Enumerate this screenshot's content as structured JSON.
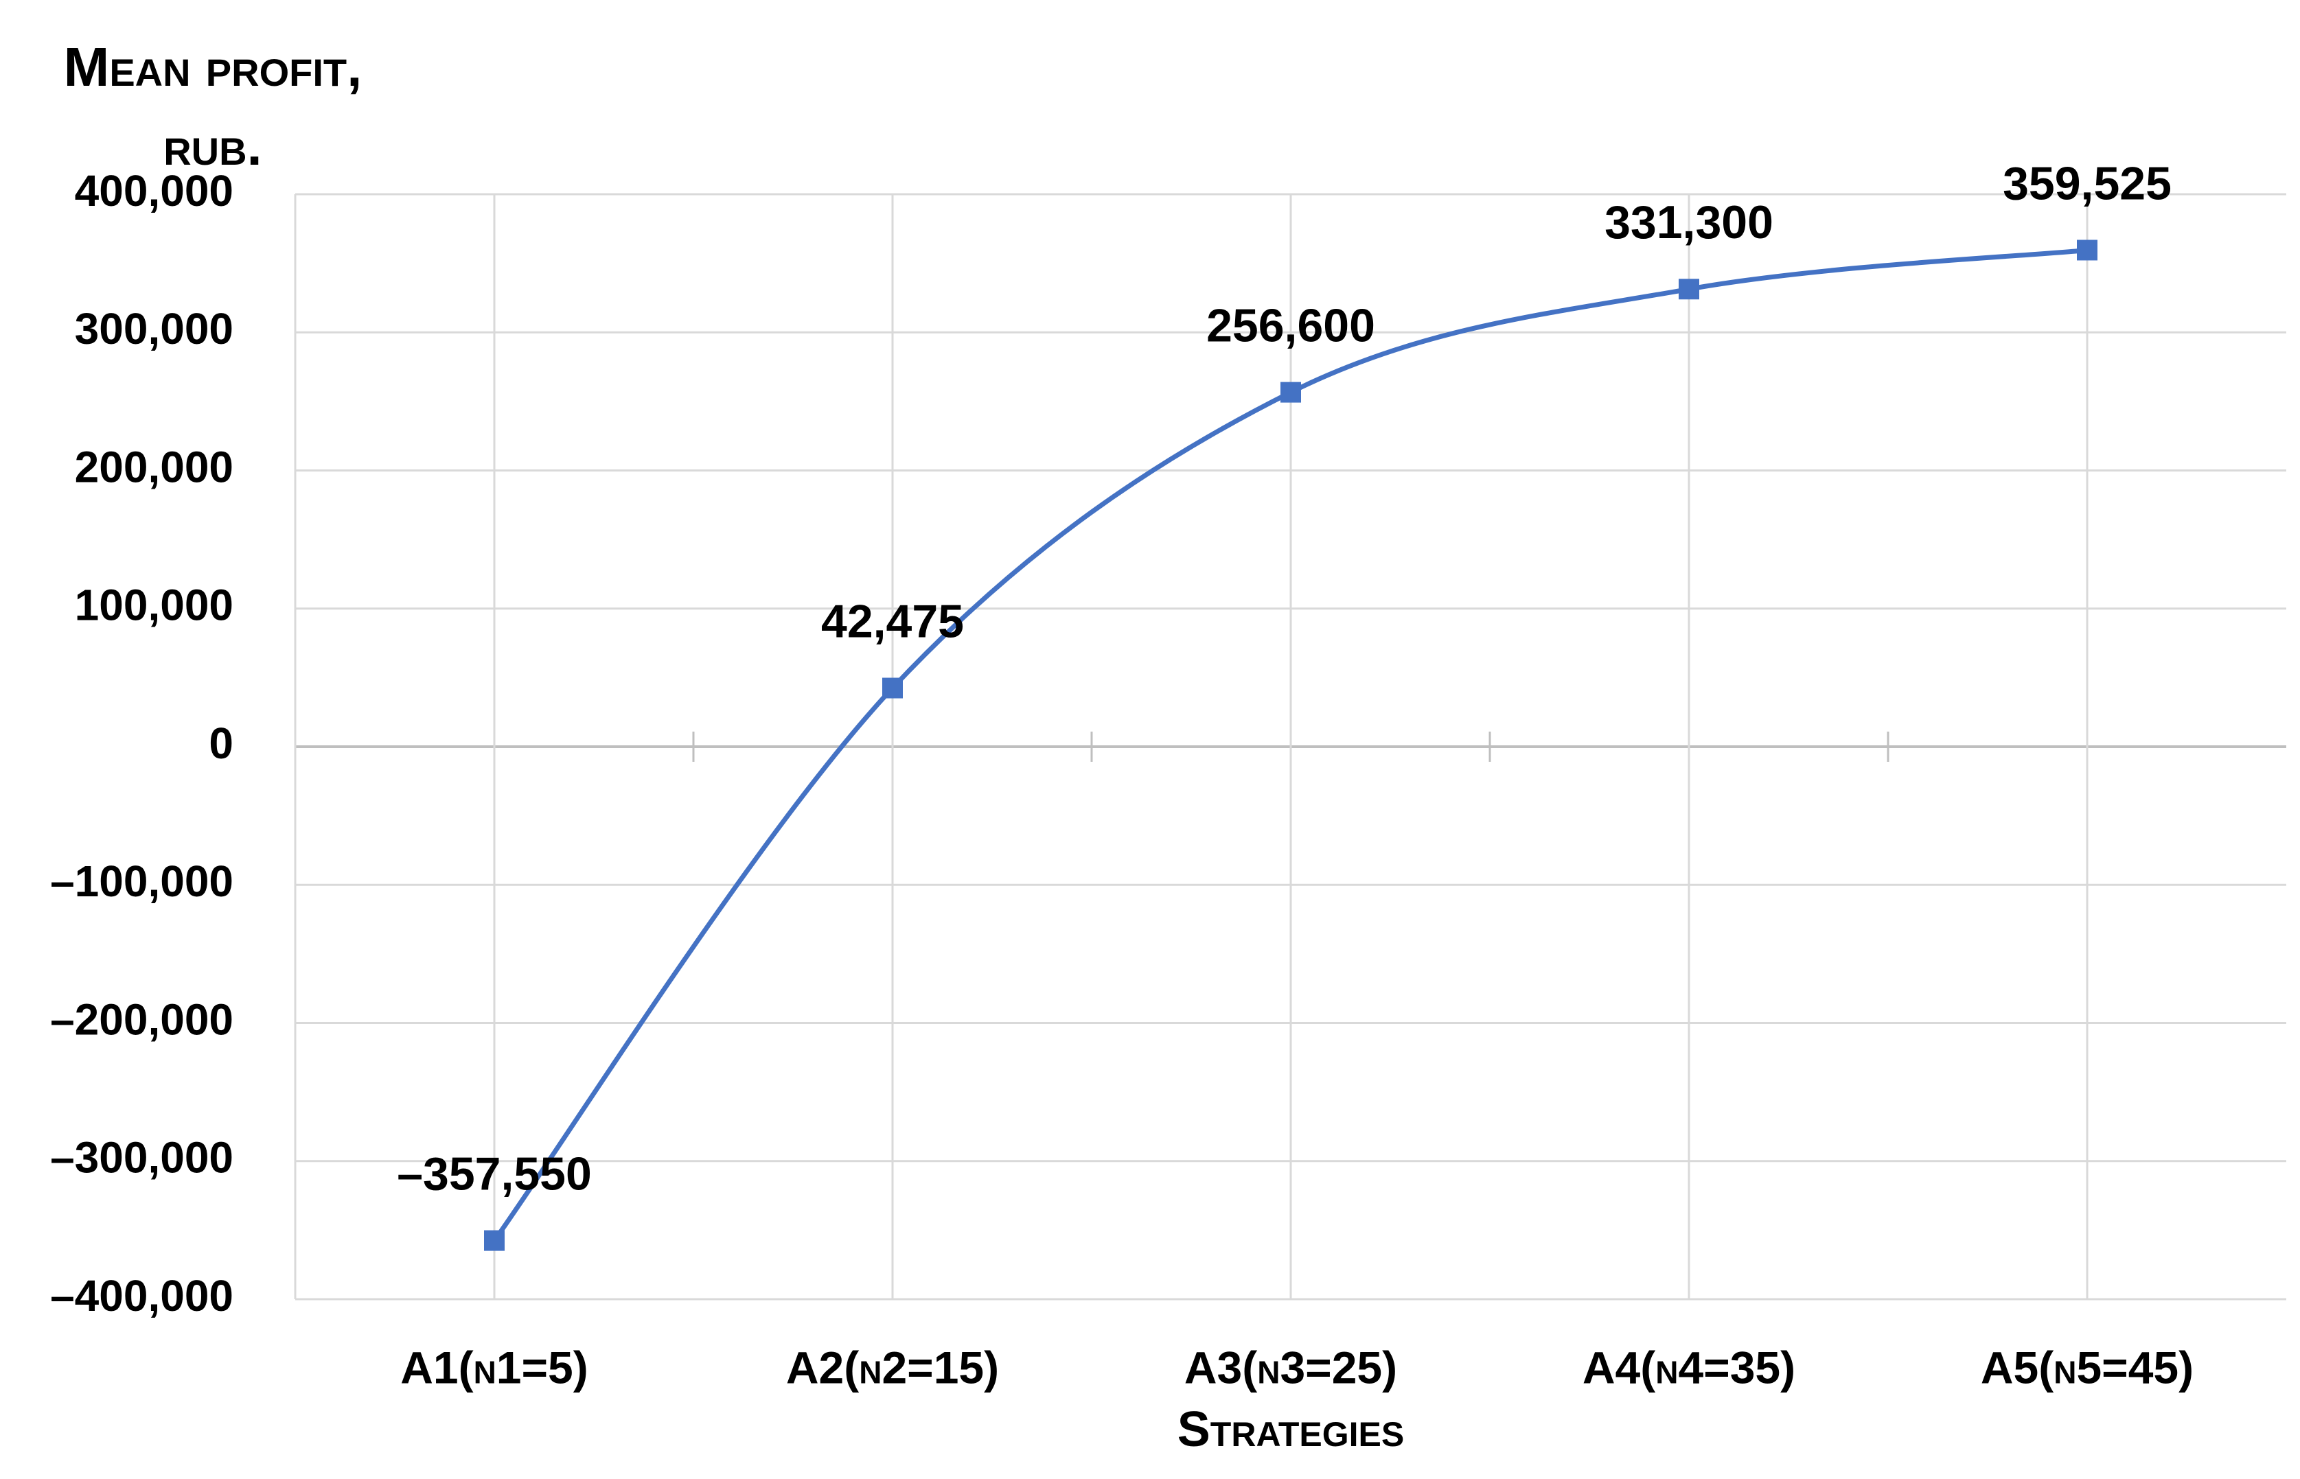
{
  "chart_data": {
    "type": "line",
    "y_label": "Mean profit, rub.",
    "x_label": "Strategies",
    "categories": [
      "A1(n1=5)",
      "A2(n2=15)",
      "A3(n3=25)",
      "A4(n4=35)",
      "A5(n5=45)"
    ],
    "values": [
      -357550,
      42475,
      256600,
      331300,
      359525
    ],
    "value_labels": [
      "–357,550",
      "42,475",
      "256,600",
      "331,300",
      "359,525"
    ],
    "color": "#4472c4",
    "ylim": [
      -400000,
      400000
    ],
    "yticks": [
      {
        "value": -400000,
        "label": "–400,000"
      },
      {
        "value": -300000,
        "label": "–300,000"
      },
      {
        "value": -200000,
        "label": "–200,000"
      },
      {
        "value": -100000,
        "label": "–100,000"
      },
      0,
      {
        "value": 100000,
        "label": "100,000"
      },
      {
        "value": 200000,
        "label": "200,000"
      },
      {
        "value": 300000,
        "label": "300,000"
      },
      {
        "value": 400000,
        "label": "400,000"
      }
    ],
    "grid": true,
    "smooth": true,
    "marker": "square"
  }
}
